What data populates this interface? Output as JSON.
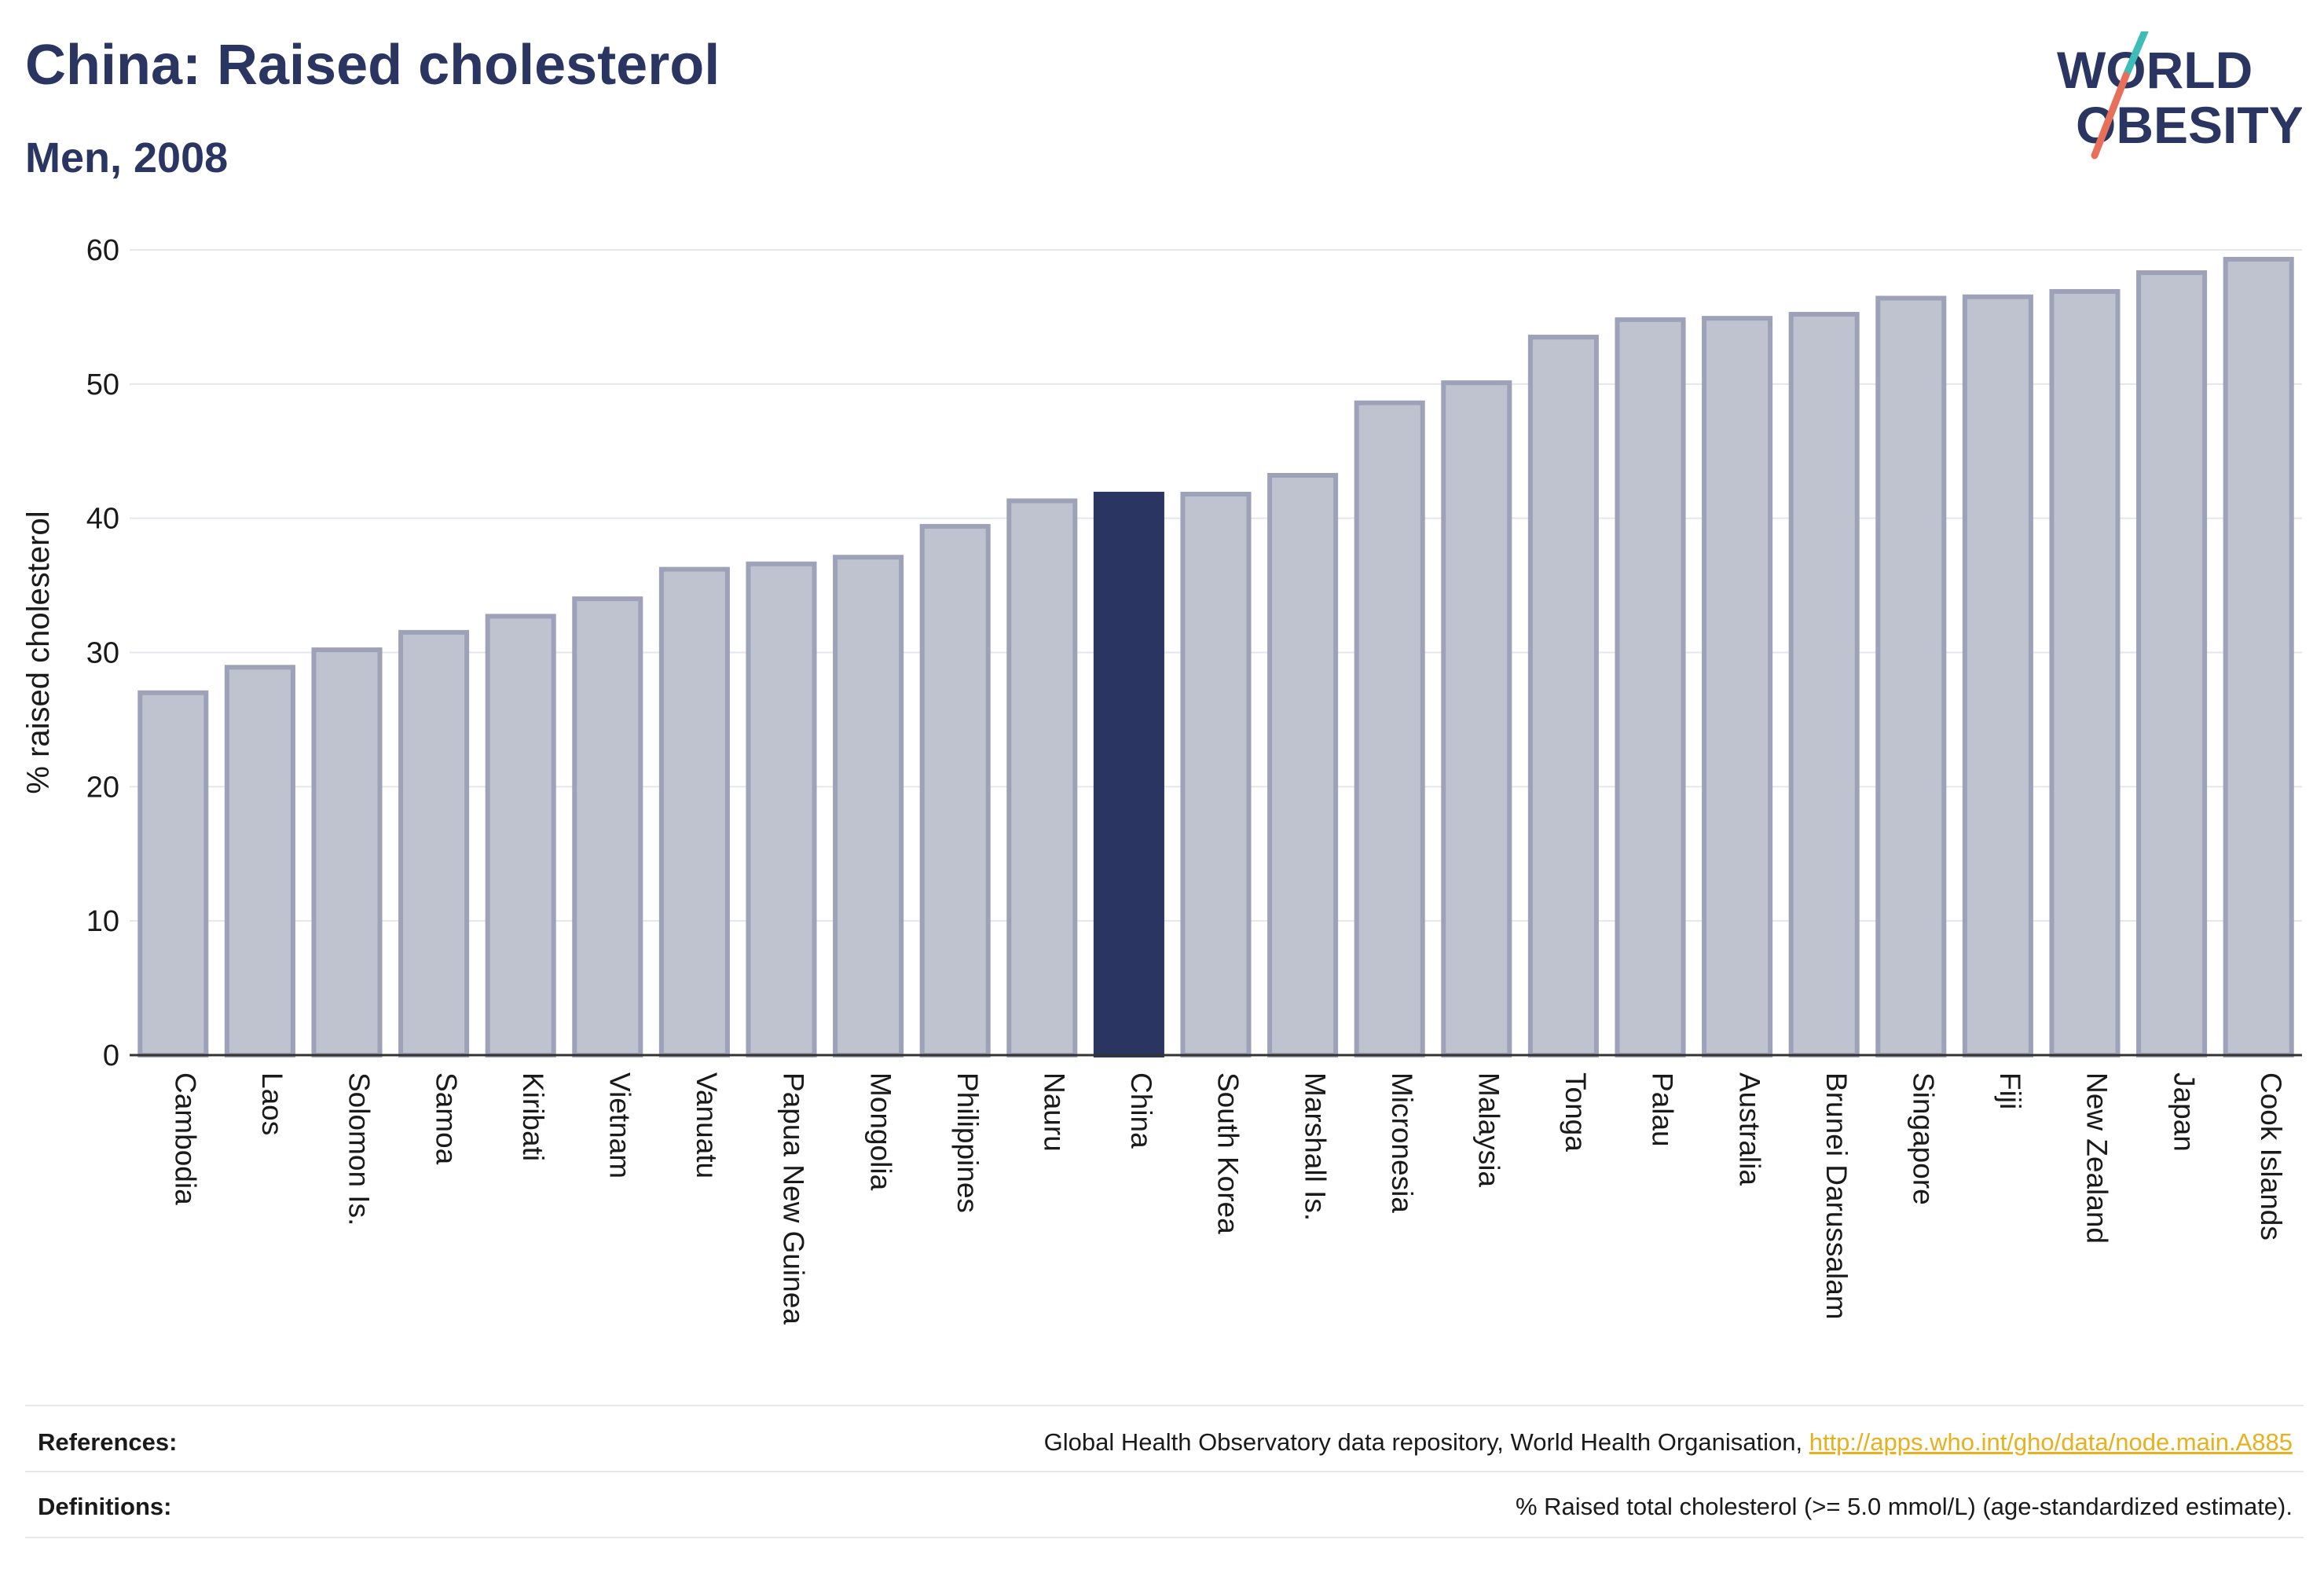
{
  "header": {
    "title": "China: Raised cholesterol",
    "subtitle": "Men, 2008"
  },
  "logo": {
    "line1": "WORLD",
    "line2": "OBESITY"
  },
  "colors": {
    "highlight": "#2a3561",
    "bar_fill": "#bfc2cf",
    "bar_stroke": "#9da2b8",
    "accent_teal": "#3dbcb8",
    "accent_coral": "#e8705a",
    "link": "#e8b01c"
  },
  "chart_data": {
    "type": "bar",
    "title": "China: Raised cholesterol",
    "subtitle": "Men, 2008",
    "ylabel": "% raised cholesterol",
    "xlabel": "",
    "ylim": [
      0,
      60
    ],
    "yticks": [
      0,
      10,
      20,
      30,
      40,
      50,
      60
    ],
    "grid": true,
    "highlight": "China",
    "categories": [
      "Cambodia",
      "Laos",
      "Solomon Is.",
      "Samoa",
      "Kiribati",
      "Vietnam",
      "Vanuatu",
      "Papua New Guinea",
      "Mongolia",
      "Philippines",
      "Nauru",
      "China",
      "South Korea",
      "Marshall Is.",
      "Micronesia",
      "Malaysia",
      "Tonga",
      "Palau",
      "Australia",
      "Brunei Darussalam",
      "Singapore",
      "Fiji",
      "New Zealand",
      "Japan",
      "Cook Islands"
    ],
    "values": [
      27.0,
      28.9,
      30.2,
      31.5,
      32.7,
      34.0,
      36.2,
      36.6,
      37.1,
      39.4,
      41.3,
      41.8,
      41.8,
      43.2,
      48.6,
      50.1,
      53.5,
      54.8,
      54.9,
      55.2,
      56.4,
      56.5,
      56.9,
      58.3,
      59.3
    ]
  },
  "footer": {
    "references_label": "References:",
    "references_text": "Global Health Observatory data repository, World Health Organisation, ",
    "references_link": "http://apps.who.int/gho/data/node.main.A885",
    "definitions_label": "Definitions:",
    "definitions_text": "% Raised total cholesterol (>= 5.0 mmol/L) (age-standardized estimate)."
  }
}
